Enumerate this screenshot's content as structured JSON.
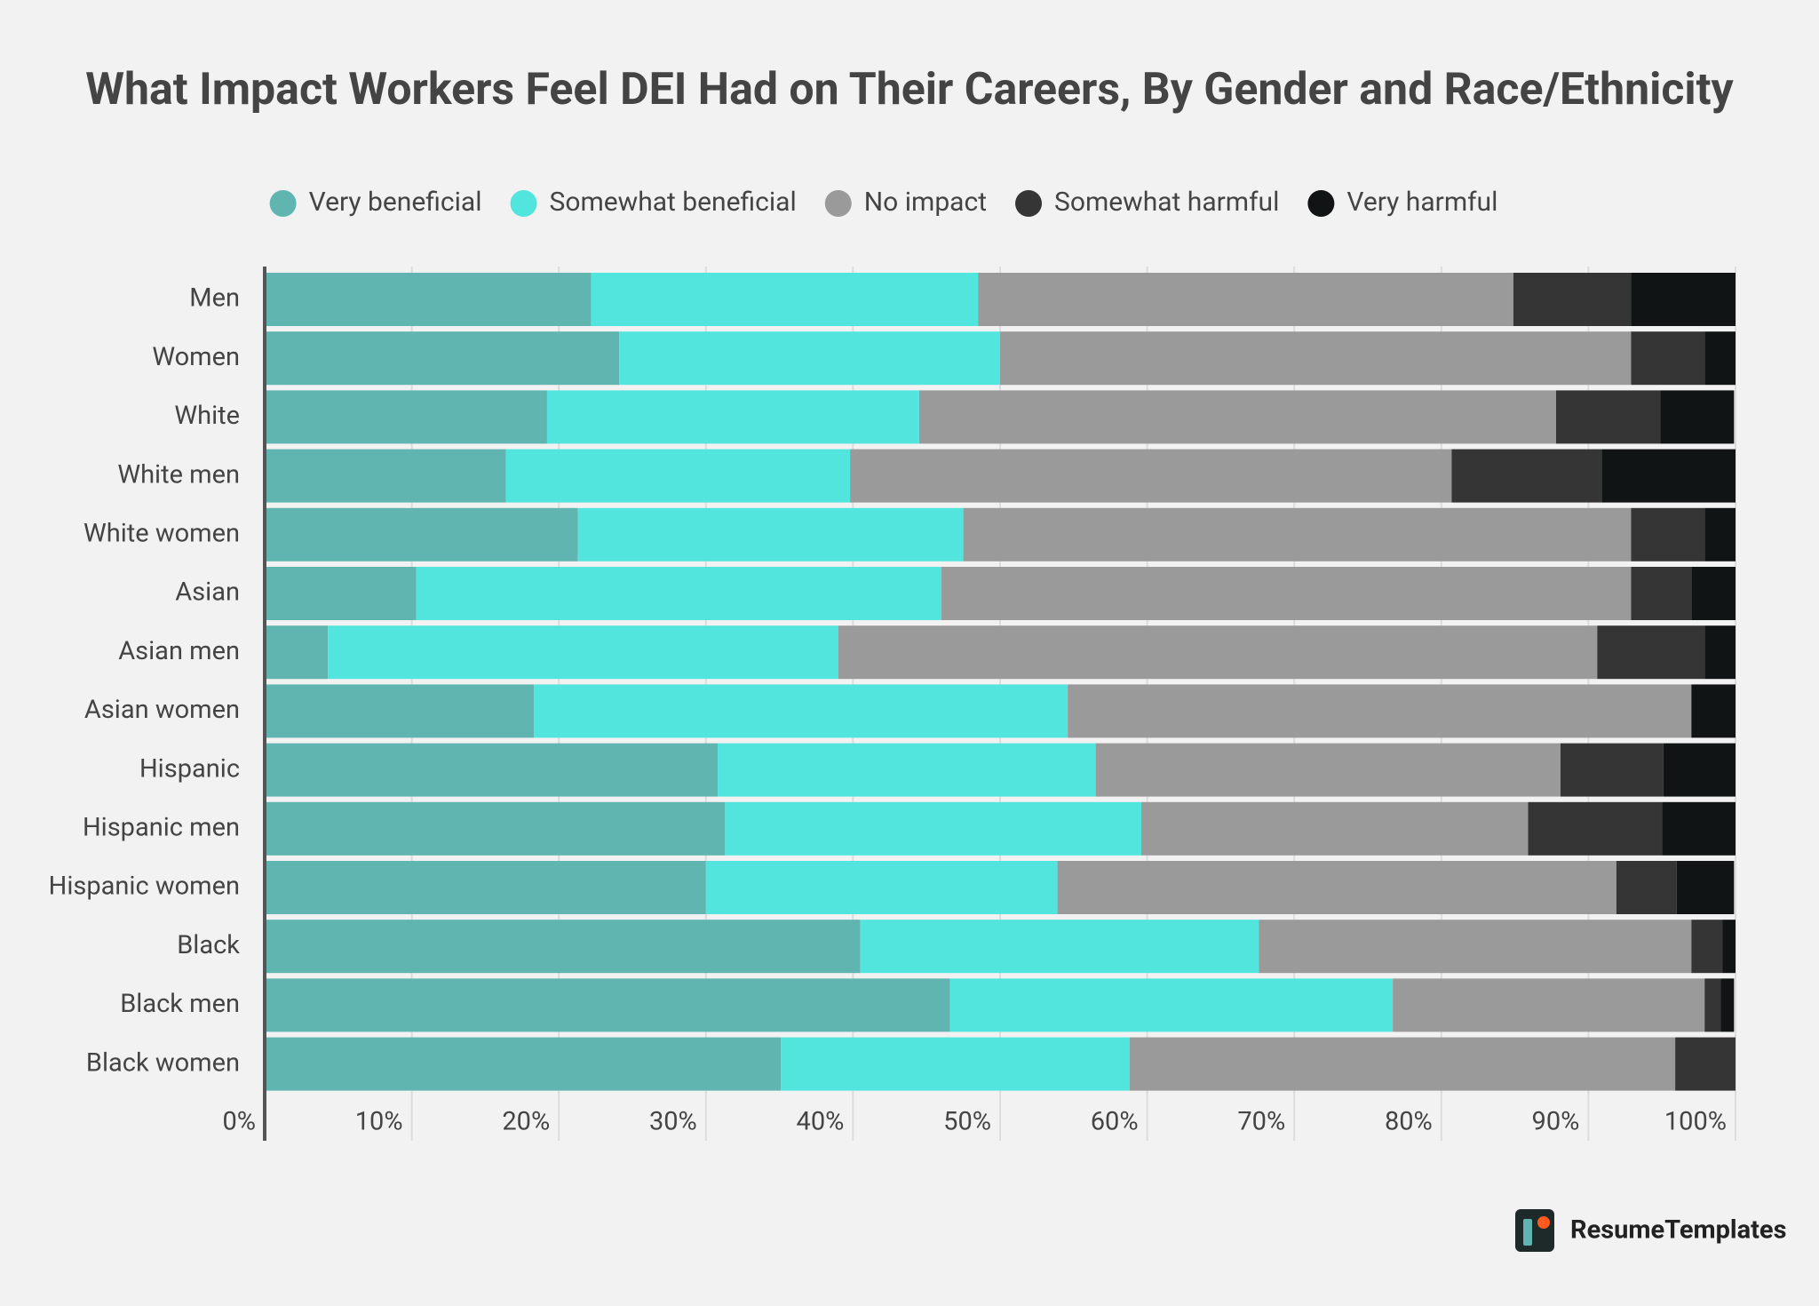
{
  "chart_data": {
    "type": "bar",
    "orientation": "horizontal",
    "stacked": true,
    "title": "What Impact Workers Feel DEI Had on Their Careers, By Gender and Race/Ethnicity",
    "categories": [
      "Men",
      "Women",
      "White",
      "White men",
      "White women",
      "Asian",
      "Asian men",
      "Asian women",
      "Hispanic",
      "Hispanic men",
      "Hispanic women",
      "Black",
      "Black men",
      "Black women"
    ],
    "series": [
      {
        "name": "Very beneficial",
        "color": "#60b5b0",
        "values": [
          22.2,
          24.1,
          19.2,
          16.4,
          21.3,
          10.3,
          4.3,
          18.3,
          30.8,
          31.3,
          30.0,
          40.5,
          46.6,
          35.1
        ]
      },
      {
        "name": "Somewhat beneficial",
        "color": "#52e5de",
        "values": [
          26.3,
          25.9,
          25.3,
          23.4,
          26.2,
          35.7,
          34.7,
          36.3,
          25.7,
          28.3,
          23.9,
          27.1,
          30.1,
          23.7
        ]
      },
      {
        "name": "No impact",
        "color": "#9a9a9a",
        "values": [
          36.4,
          42.9,
          43.3,
          40.9,
          45.4,
          46.9,
          51.6,
          42.4,
          31.6,
          26.3,
          38.0,
          29.4,
          21.2,
          37.1
        ]
      },
      {
        "name": "Somewhat harmful",
        "color": "#353535",
        "values": [
          8.0,
          5.0,
          7.1,
          10.2,
          5.0,
          4.1,
          7.3,
          0,
          7.0,
          9.1,
          4.1,
          2.1,
          1.1,
          4.1
        ]
      },
      {
        "name": "Very harmful",
        "color": "#111414",
        "values": [
          7.1,
          2.1,
          5.0,
          9.1,
          2.1,
          3.0,
          2.1,
          3.0,
          4.9,
          5.0,
          3.9,
          0.9,
          0.9,
          0
        ]
      }
    ],
    "xlim": [
      0,
      100
    ],
    "xticks": [
      {
        "value": 0,
        "label": "0%"
      },
      {
        "value": 10,
        "label": "10%"
      },
      {
        "value": 20,
        "label": "20%"
      },
      {
        "value": 30,
        "label": "30%"
      },
      {
        "value": 40,
        "label": "40%"
      },
      {
        "value": 50,
        "label": "50%"
      },
      {
        "value": 60,
        "label": "60%"
      },
      {
        "value": 70,
        "label": "70%"
      },
      {
        "value": 80,
        "label": "80%"
      },
      {
        "value": 90,
        "label": "90%"
      },
      {
        "value": 100,
        "label": "100%"
      }
    ],
    "grid": true,
    "legend_position": "top"
  },
  "brand": "ResumeTemplates"
}
